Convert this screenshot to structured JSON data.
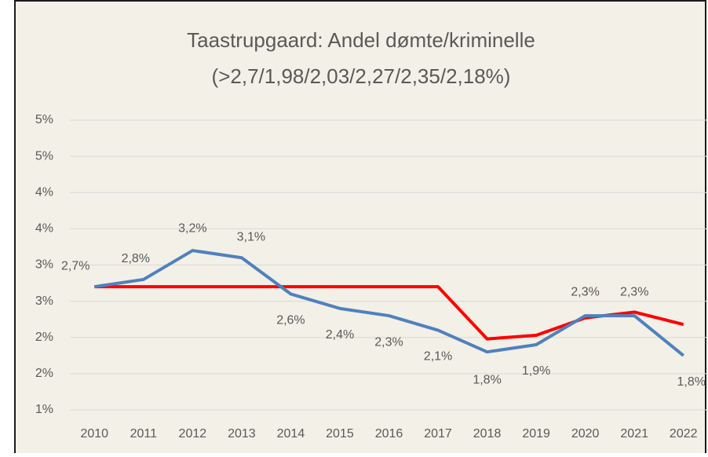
{
  "chart_data": {
    "type": "line",
    "title": "Taastrupgaard: Andel dømte/kriminelle",
    "subtitle": "(>2,7/1,98/2,03/2,27/2,35/2,18%)",
    "categories": [
      "2010",
      "2011",
      "2012",
      "2013",
      "2014",
      "2015",
      "2016",
      "2017",
      "2018",
      "2019",
      "2020",
      "2021",
      "2022"
    ],
    "series": [
      {
        "color": "#4f81bd",
        "values": [
          2.7,
          2.8,
          3.2,
          3.1,
          2.6,
          2.4,
          2.3,
          2.1,
          1.8,
          1.9,
          2.3,
          2.3,
          1.75
        ],
        "value_labels": [
          "2,7%",
          "2,8%",
          "3,2%",
          "3,1%",
          "2,6%",
          "2,4%",
          "2,3%",
          "2,1%",
          "1,8%",
          "1,9%",
          "2,3%",
          "2,3%",
          "1,8%"
        ]
      },
      {
        "color": "#ff0000",
        "values": [
          2.7,
          2.7,
          2.7,
          2.7,
          2.7,
          2.7,
          2.7,
          2.7,
          1.98,
          2.03,
          2.27,
          2.35,
          2.18
        ]
      }
    ],
    "ylim": [
      1,
      5
    ],
    "yticks": [
      {
        "value": 1,
        "label": "1%"
      },
      {
        "value": 1.5,
        "label": "2%"
      },
      {
        "value": 2,
        "label": "2%"
      },
      {
        "value": 2.5,
        "label": "3%"
      },
      {
        "value": 3,
        "label": "3%"
      },
      {
        "value": 3.5,
        "label": "4%"
      },
      {
        "value": 4,
        "label": "4%"
      },
      {
        "value": 4.5,
        "label": "5%"
      },
      {
        "value": 5,
        "label": "5%"
      }
    ],
    "grid": true
  }
}
